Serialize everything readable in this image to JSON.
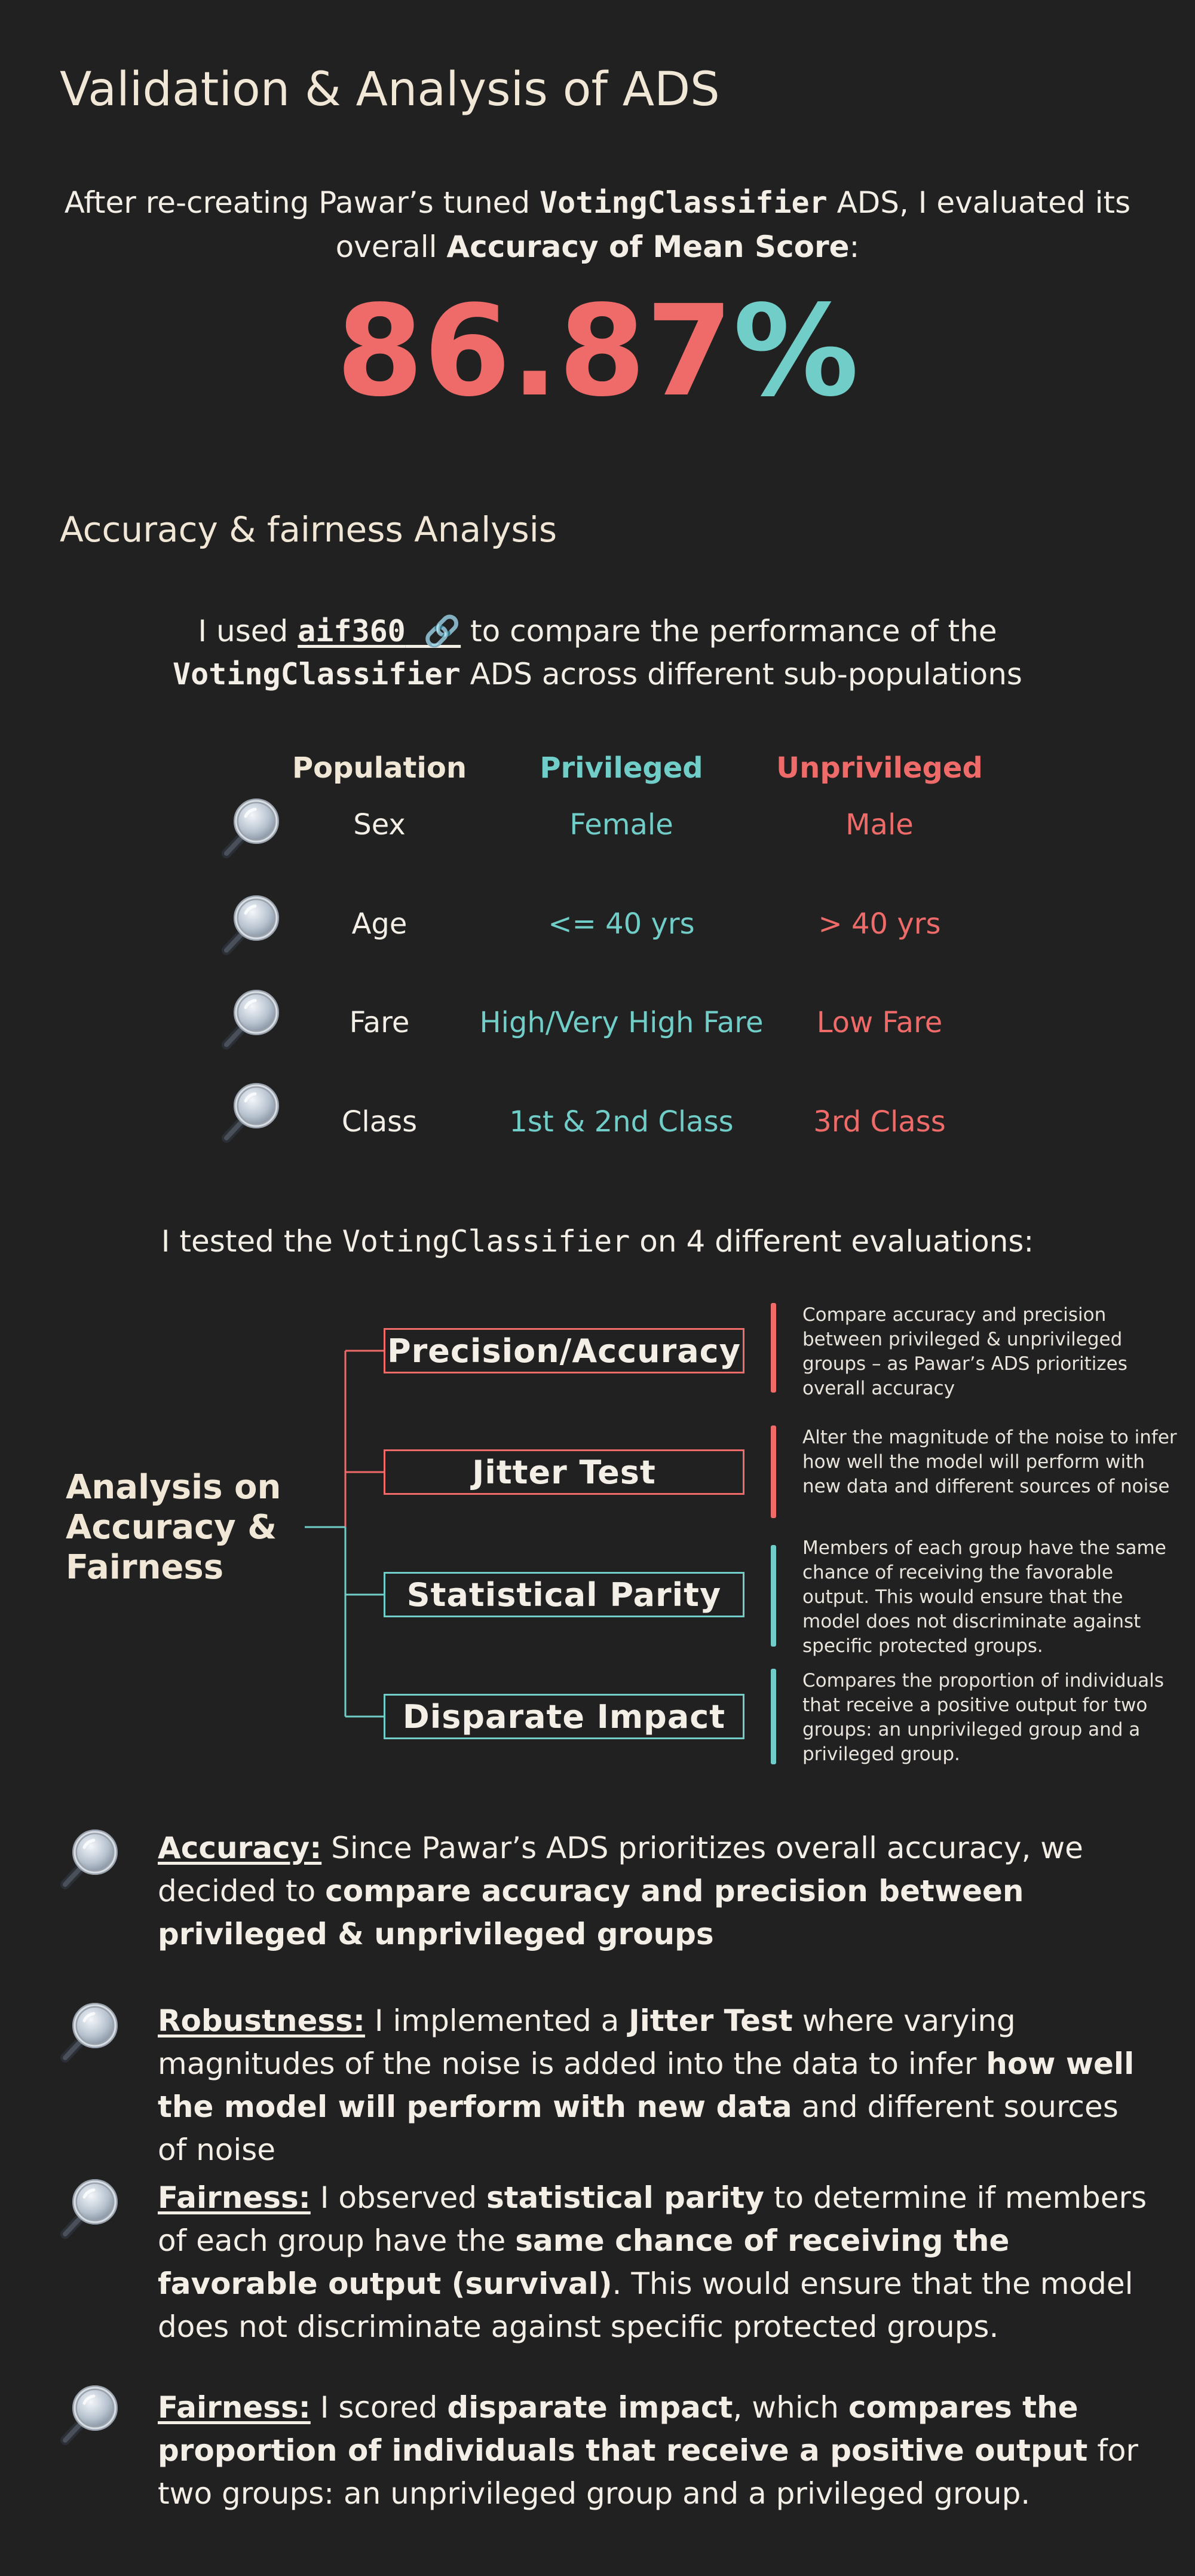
{
  "title": "Validation & Analysis of ADS",
  "intro": {
    "pre": "After re-creating Pawar’s tuned ",
    "code": "VotingClassifier",
    "mid": " ADS, I evaluated its overall ",
    "bold": "Accuracy of Mean Score",
    "post": ":"
  },
  "score": {
    "number": "86.87",
    "percent": "%"
  },
  "section_title": "Accuracy & fairness Analysis",
  "aif": {
    "pre": "I used ",
    "link": "aif360",
    "link_icon": "link-icon",
    "mid": " to compare the performance of the ",
    "code": "VotingClassifier",
    "post": " ADS across different sub-populations"
  },
  "population_table": {
    "headers": [
      "Population",
      "Privileged",
      "Unprivileged"
    ],
    "row_icon": "magnifying-glass-icon",
    "rows": [
      {
        "population": "Sex",
        "privileged": "Female",
        "unprivileged": "Male"
      },
      {
        "population": "Age",
        "privileged": "<= 40 yrs",
        "unprivileged": "> 40 yrs"
      },
      {
        "population": "Fare",
        "privileged": "High/Very High Fare",
        "unprivileged": "Low Fare"
      },
      {
        "population": "Class",
        "privileged": "1st & 2nd Class",
        "unprivileged": "3rd Class"
      }
    ]
  },
  "tests_intro": {
    "pre": "I tested the ",
    "code": "VotingClassifier",
    "post": " on 4 different evaluations:"
  },
  "analysis_tree": {
    "root": "Analysis on Accuracy & Fairness",
    "branches": [
      {
        "label": "Precision/Accuracy",
        "description": "Compare accuracy and precision between privileged & unprivileged groups – as Pawar’s ADS prioritizes overall accuracy"
      },
      {
        "label": "Jitter Test",
        "description": "Alter the magnitude of the noise to infer how well the model will perform with new data and different sources of noise"
      },
      {
        "label": "Statistical Parity",
        "description": "Members of each group have the same chance of receiving the favorable output. This would ensure that the model does not discriminate against specific protected groups."
      },
      {
        "label": "Disparate Impact",
        "description": "Compares the proportion of individuals that receive a positive output for two groups: an unprivileged group and a privileged group."
      }
    ]
  },
  "findings": [
    {
      "heading": "Accuracy:",
      "t1": " Since Pawar’s ADS prioritizes overall accuracy, we decided to ",
      "b1": "compare accuracy and precision between privileged & unprivileged groups",
      "t2": "",
      "b2": "",
      "t3": ""
    },
    {
      "heading": "Robustness:",
      "t1": " I implemented a ",
      "b1": "Jitter Test",
      "t2": " where varying magnitudes of the noise is added into the data to infer ",
      "b2": "how well the model will perform with new data",
      "t3": " and different sources of noise"
    },
    {
      "heading": "Fairness:",
      "t1": " I observed ",
      "b1": "statistical parity",
      "t2": " to determine if members of each group have the ",
      "b2": "same chance of receiving the favorable output (survival)",
      "t3": ". This would ensure that the model does not discriminate against specific protected groups."
    },
    {
      "heading": "Fairness:",
      "t1": " I scored ",
      "b1": "disparate impact",
      "t2": ", which ",
      "b2": "compares the proportion of individuals that receive a positive output",
      "t3": " for two groups: an unprivileged group and a privileged group."
    }
  ],
  "colors": {
    "background": "#222121",
    "accent_teal": "#70cdc8",
    "accent_coral": "#ef6b69",
    "cream": "#f1e7d6"
  }
}
